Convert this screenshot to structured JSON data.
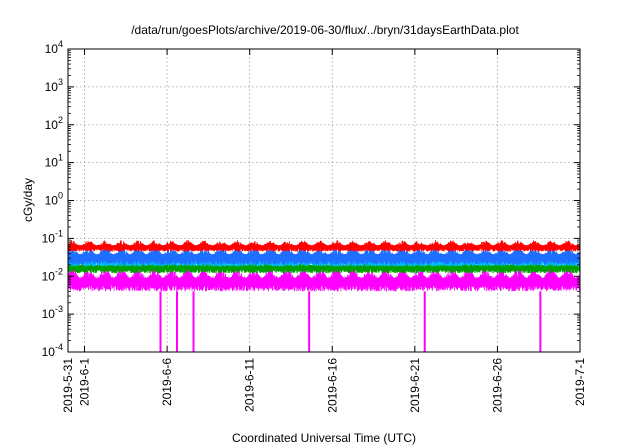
{
  "chart_data": {
    "type": "line",
    "title": "/data/run/goesPlots/archive/2019-06-30/flux/../bryn/31daysEarthData.plot",
    "xlabel": "Coordinated Universal Time (UTC)",
    "ylabel": "cGy/day",
    "yscale": "log",
    "ylim": [
      0.0001,
      10000
    ],
    "y_ticks": [
      {
        "value": 0.0001,
        "base": "10",
        "exp": "-4"
      },
      {
        "value": 0.001,
        "base": "10",
        "exp": "-3"
      },
      {
        "value": 0.01,
        "base": "10",
        "exp": "-2"
      },
      {
        "value": 0.1,
        "base": "10",
        "exp": "-1"
      },
      {
        "value": 1,
        "base": "10",
        "exp": "0"
      },
      {
        "value": 10,
        "base": "10",
        "exp": "1"
      },
      {
        "value": 100,
        "base": "10",
        "exp": "2"
      },
      {
        "value": 1000,
        "base": "10",
        "exp": "3"
      },
      {
        "value": 10000,
        "base": "10",
        "exp": "4"
      }
    ],
    "xlim": [
      "2019-05-31",
      "2019-07-01"
    ],
    "x_ticks": [
      "2019-5-31",
      "2019-6-1",
      "2019-6-6",
      "2019-6-11",
      "2019-6-16",
      "2019-6-21",
      "2019-6-26",
      "2019-7-1"
    ],
    "x_tick_dates": [
      "2019-05-31",
      "2019-06-01",
      "2019-06-06",
      "2019-06-11",
      "2019-06-16",
      "2019-06-21",
      "2019-06-26",
      "2019-07-01"
    ],
    "grid": true,
    "series": [
      {
        "color": "#ff0000",
        "min": 0.045,
        "max": 0.09,
        "daily_peak_dates": [
          "2019-06-01",
          "2019-06-02",
          "2019-06-03",
          "2019-06-04",
          "2019-06-05",
          "2019-06-06",
          "2019-06-07",
          "2019-06-08",
          "2019-06-09",
          "2019-06-10",
          "2019-06-11",
          "2019-06-12",
          "2019-06-13",
          "2019-06-14",
          "2019-06-15",
          "2019-06-16",
          "2019-06-17",
          "2019-06-18",
          "2019-06-19",
          "2019-06-20",
          "2019-06-21",
          "2019-06-22",
          "2019-06-23",
          "2019-06-24",
          "2019-06-25",
          "2019-06-26",
          "2019-06-27",
          "2019-06-28",
          "2019-06-29",
          "2019-06-30"
        ]
      },
      {
        "color": "#1e6fff",
        "min": 0.02,
        "max": 0.065
      },
      {
        "color": "#00c0ff",
        "min": 0.018,
        "max": 0.045
      },
      {
        "color": "#00a000",
        "min": 0.012,
        "max": 0.03
      },
      {
        "color": "#ff00ff",
        "min": 0.004,
        "max": 0.018,
        "dropouts": [
          {
            "date": "2019-06-05",
            "value": 0.0001
          },
          {
            "date": "2019-06-06",
            "value": 0.0001
          },
          {
            "date": "2019-06-07",
            "value": 0.0001
          },
          {
            "date": "2019-06-14",
            "value": 0.0001
          },
          {
            "date": "2019-06-21",
            "value": 0.0001
          },
          {
            "date": "2019-06-28",
            "value": 0.0001
          }
        ]
      }
    ]
  }
}
